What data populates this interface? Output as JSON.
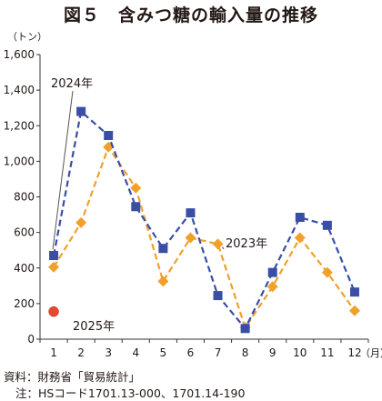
{
  "chart_data": {
    "type": "line",
    "title": "図５　含みつ糖の輸入量の推移",
    "y_unit": "（トン）",
    "x_unit": "（月）",
    "x": [
      "1",
      "2",
      "3",
      "4",
      "5",
      "6",
      "7",
      "8",
      "9",
      "10",
      "11",
      "12"
    ],
    "ylim": [
      0,
      1600
    ],
    "yticks": [
      "0",
      "200",
      "400",
      "600",
      "800",
      "1,000",
      "1,200",
      "1,400",
      "1,600"
    ],
    "grid": false,
    "series": [
      {
        "name": "2024年",
        "color": "#3a4ea6",
        "marker": "square",
        "dash": true,
        "values": [
          470,
          1280,
          1145,
          745,
          510,
          710,
          245,
          60,
          375,
          685,
          640,
          265
        ]
      },
      {
        "name": "2023年",
        "color": "#f0a12b",
        "marker": "diamond",
        "dash": true,
        "values": [
          405,
          655,
          1080,
          850,
          325,
          570,
          535,
          65,
          295,
          570,
          375,
          160
        ]
      },
      {
        "name": "2025年",
        "color": "#e8472c",
        "marker": "circle",
        "dash": false,
        "values": [
          155,
          null,
          null,
          null,
          null,
          null,
          null,
          null,
          null,
          null,
          null,
          null
        ]
      }
    ]
  },
  "footer": {
    "source": "資料：財務省「貿易統計」",
    "note": "注：HSコード1701.13-000、1701.14-190"
  }
}
